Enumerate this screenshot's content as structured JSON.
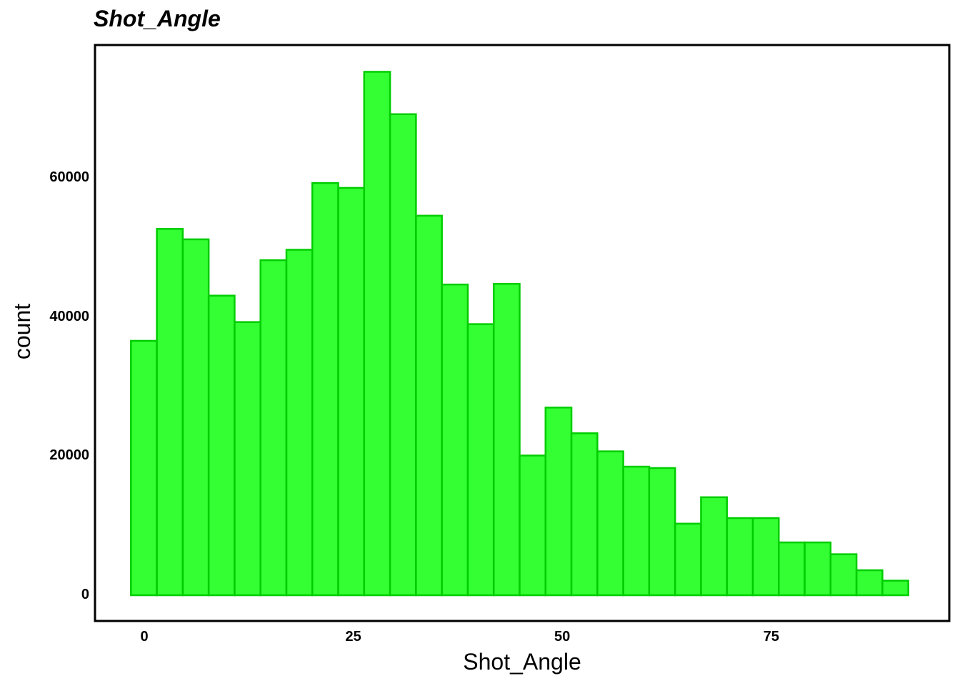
{
  "chart_data": {
    "type": "bar",
    "subtype": "histogram",
    "title": "Shot_Angle",
    "xlabel": "Shot_Angle",
    "ylabel": "count",
    "bin_start": -1.6,
    "bin_width": 3.1,
    "counts": [
      36600,
      52700,
      51200,
      43100,
      39300,
      48200,
      49700,
      59300,
      58600,
      75300,
      69200,
      54600,
      44700,
      39000,
      44800,
      20100,
      27000,
      23300,
      20700,
      18500,
      18300,
      10300,
      14100,
      11100,
      11100,
      7600,
      7600,
      5900,
      3600,
      2100
    ],
    "x_ticks": [
      0,
      25,
      50,
      75
    ],
    "y_ticks": [
      0,
      20000,
      40000,
      60000
    ],
    "x_domain": [
      -5.9,
      96.3
    ],
    "y_domain": [
      -3700,
      79150
    ],
    "grid": false,
    "legend_position": "none",
    "colors": {
      "bar_fill": "#33FF33",
      "bar_stroke": "#00CD00",
      "panel_border": "#000000",
      "text": "#000000",
      "background": "#FFFFFF"
    }
  }
}
